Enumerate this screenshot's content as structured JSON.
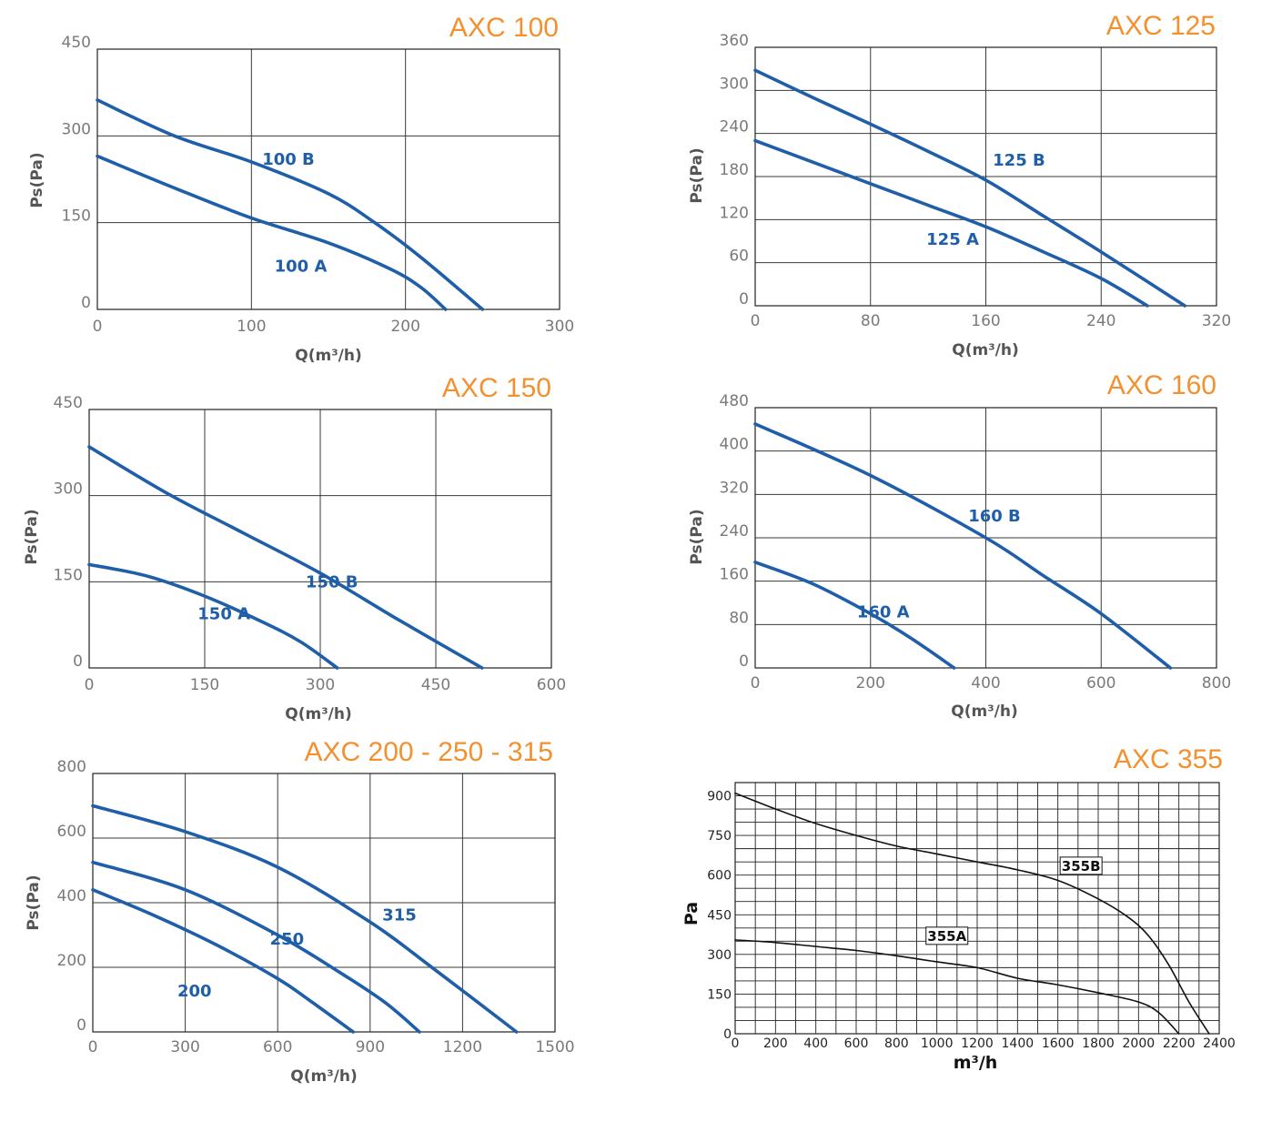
{
  "chart_data": [
    {
      "id": "axc100",
      "type": "line",
      "title": "AXC 100",
      "xlabel": "Q(m³/h)",
      "ylabel": "Ps(Pa)",
      "xlim": [
        0,
        300
      ],
      "ylim": [
        0,
        450
      ],
      "xticks": [
        0,
        100,
        200,
        300
      ],
      "yticks": [
        0,
        150,
        300,
        450
      ],
      "grid": true,
      "series": [
        {
          "name": "100 A",
          "label_at": [
            132,
            65
          ],
          "x": [
            0,
            50,
            100,
            150,
            190,
            210,
            226
          ],
          "y": [
            265,
            210,
            158,
            115,
            70,
            38,
            0
          ]
        },
        {
          "name": "100 B",
          "label_at": [
            124,
            250
          ],
          "x": [
            0,
            50,
            100,
            150,
            180,
            210,
            250
          ],
          "y": [
            362,
            300,
            255,
            200,
            150,
            90,
            0
          ]
        }
      ]
    },
    {
      "id": "axc125",
      "type": "line",
      "title": "AXC 125",
      "xlabel": "Q(m³/h)",
      "ylabel": "Ps(Pa)",
      "xlim": [
        0,
        320
      ],
      "ylim": [
        0,
        360
      ],
      "xticks": [
        0,
        80,
        160,
        240,
        320
      ],
      "yticks": [
        0,
        60,
        120,
        180,
        240,
        300,
        360
      ],
      "grid": true,
      "series": [
        {
          "name": "125 A",
          "label_at": [
            137,
            85
          ],
          "x": [
            0,
            40,
            80,
            120,
            160,
            200,
            240,
            272
          ],
          "y": [
            230,
            200,
            170,
            140,
            110,
            75,
            38,
            0
          ]
        },
        {
          "name": "125 B",
          "label_at": [
            183,
            195
          ],
          "x": [
            0,
            40,
            80,
            120,
            160,
            200,
            240,
            298
          ],
          "y": [
            328,
            290,
            253,
            215,
            175,
            125,
            75,
            0
          ]
        }
      ]
    },
    {
      "id": "axc150",
      "type": "line",
      "title": "AXC 150",
      "xlabel": "Q(m³/h)",
      "ylabel": "Ps(Pa)",
      "xlim": [
        0,
        600
      ],
      "ylim": [
        0,
        450
      ],
      "xticks": [
        0,
        150,
        300,
        450,
        600
      ],
      "yticks": [
        0,
        150,
        300,
        450
      ],
      "grid": true,
      "series": [
        {
          "name": "150 A",
          "label_at": [
            175,
            85
          ],
          "x": [
            0,
            75,
            150,
            225,
            275,
            322
          ],
          "y": [
            180,
            160,
            125,
            80,
            45,
            0
          ]
        },
        {
          "name": "150 B",
          "label_at": [
            315,
            140
          ],
          "x": [
            0,
            100,
            200,
            300,
            400,
            510
          ],
          "y": [
            385,
            305,
            235,
            165,
            85,
            0
          ]
        }
      ]
    },
    {
      "id": "axc160",
      "type": "line",
      "title": "AXC 160",
      "xlabel": "Q(m³/h)",
      "ylabel": "Ps(Pa)",
      "xlim": [
        0,
        800
      ],
      "ylim": [
        0,
        480
      ],
      "xticks": [
        0,
        200,
        400,
        600,
        800
      ],
      "yticks": [
        0,
        80,
        160,
        240,
        320,
        400,
        480
      ],
      "grid": true,
      "series": [
        {
          "name": "160 A",
          "label_at": [
            222,
            93
          ],
          "x": [
            0,
            100,
            200,
            270,
            345
          ],
          "y": [
            195,
            155,
            100,
            55,
            0
          ]
        },
        {
          "name": "160 B",
          "label_at": [
            415,
            270
          ],
          "x": [
            0,
            200,
            400,
            500,
            600,
            720
          ],
          "y": [
            450,
            355,
            240,
            170,
            100,
            0
          ]
        }
      ]
    },
    {
      "id": "axc200",
      "type": "line",
      "title": "AXC 200 - 250 - 315",
      "xlabel": "Q(m³/h)",
      "ylabel": "Ps(Pa)",
      "xlim": [
        0,
        1500
      ],
      "ylim": [
        0,
        800
      ],
      "xticks": [
        0,
        300,
        600,
        900,
        1200,
        1500
      ],
      "yticks": [
        0,
        200,
        400,
        600,
        800
      ],
      "grid": true,
      "series": [
        {
          "name": "200",
          "label_at": [
            330,
            110
          ],
          "x": [
            0,
            200,
            400,
            600,
            700,
            845
          ],
          "y": [
            440,
            360,
            270,
            165,
            100,
            0
          ]
        },
        {
          "name": "250",
          "label_at": [
            630,
            270
          ],
          "x": [
            0,
            300,
            600,
            800,
            950,
            1060
          ],
          "y": [
            525,
            440,
            300,
            185,
            90,
            0
          ]
        },
        {
          "name": "315",
          "label_at": [
            995,
            345
          ],
          "x": [
            0,
            300,
            600,
            900,
            1100,
            1375
          ],
          "y": [
            700,
            620,
            510,
            340,
            200,
            0
          ]
        }
      ]
    },
    {
      "id": "axc355",
      "type": "line",
      "title": "AXC 355",
      "xlabel": "m³/h",
      "ylabel": "Pa",
      "xlim": [
        0,
        2400
      ],
      "ylim": [
        0,
        950
      ],
      "xticks": [
        0,
        200,
        400,
        600,
        800,
        1000,
        1200,
        1400,
        1600,
        1800,
        2000,
        2200,
        2400
      ],
      "yticks": [
        0,
        150,
        300,
        450,
        600,
        750,
        900
      ],
      "grid": true,
      "series": [
        {
          "name": "355A",
          "label_at": [
            1050,
            355
          ],
          "x": [
            0,
            200,
            400,
            600,
            800,
            1000,
            1200,
            1400,
            1600,
            1800,
            2000,
            2100,
            2200
          ],
          "y": [
            355,
            345,
            330,
            315,
            295,
            272,
            250,
            210,
            185,
            155,
            120,
            80,
            0
          ]
        },
        {
          "name": "355B",
          "label_at": [
            1715,
            620
          ],
          "x": [
            0,
            200,
            400,
            600,
            800,
            1000,
            1200,
            1400,
            1600,
            1800,
            1950,
            2050,
            2150,
            2250,
            2350
          ],
          "y": [
            910,
            850,
            795,
            750,
            710,
            680,
            650,
            620,
            580,
            510,
            440,
            370,
            260,
            120,
            0
          ]
        }
      ]
    }
  ]
}
